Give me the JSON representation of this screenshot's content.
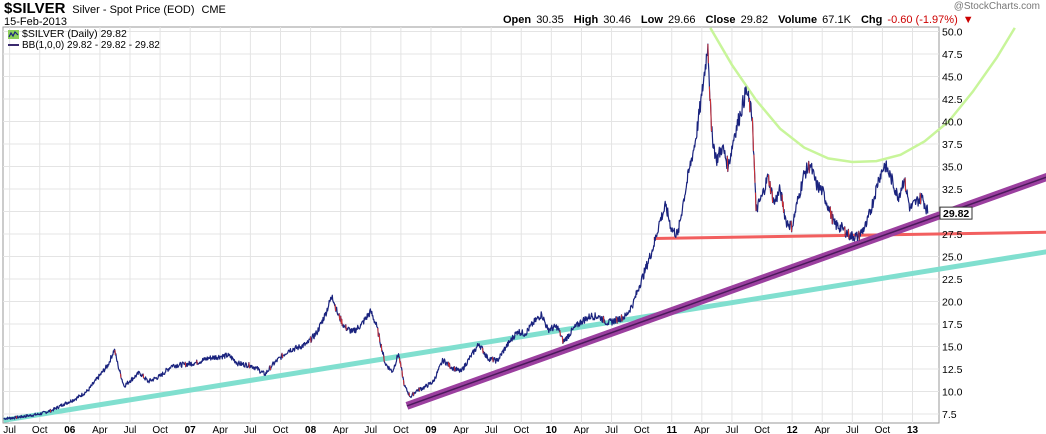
{
  "header": {
    "symbol": "$SILVER",
    "description": "Silver - Spot Price (EOD)",
    "exchange": "CME",
    "date": "15-Feb-2013",
    "open_label": "Open",
    "open": "30.35",
    "high_label": "High",
    "high": "30.46",
    "low_label": "Low",
    "low": "29.66",
    "close_label": "Close",
    "close": "29.82",
    "volume_label": "Volume",
    "volume": "67.1K",
    "chg_label": "Chg",
    "chg": "-0.60 (-1.97%)",
    "chg_arrow": "▼",
    "credit": "@StockCharts.com"
  },
  "legend": {
    "series1": "$SILVER (Daily) 29.82",
    "series2": "BB(1,0,0) 29.82 - 29.82 - 29.82"
  },
  "last_price_label": "29.82",
  "colors": {
    "price": "#1a237e",
    "teal_line": "#80dfcf",
    "purple_line": "#9b3f9f",
    "purple_core": "#4a1a5a",
    "red_line": "#f25f5f",
    "green_curve": "#c8f59a",
    "grid": "#e4e4e4",
    "accent_bg": "#8ccf5a"
  },
  "chart_data": {
    "type": "line",
    "title": "$SILVER Silver - Spot Price (EOD)",
    "xlabel": "",
    "ylabel": "",
    "ylim": [
      6.5,
      50.5
    ],
    "y_ticks": [
      7.5,
      10.0,
      12.5,
      15.0,
      17.5,
      20.0,
      22.5,
      25.0,
      27.5,
      30.0,
      32.5,
      35.0,
      37.5,
      40.0,
      42.5,
      45.0,
      47.5,
      50.0
    ],
    "x_ticks": [
      {
        "label": "Jul",
        "t": 2005.5
      },
      {
        "label": "Oct",
        "t": 2005.75
      },
      {
        "label": "06",
        "t": 2006.0
      },
      {
        "label": "Apr",
        "t": 2006.25
      },
      {
        "label": "Jul",
        "t": 2006.5
      },
      {
        "label": "Oct",
        "t": 2006.75
      },
      {
        "label": "07",
        "t": 2007.0
      },
      {
        "label": "Apr",
        "t": 2007.25
      },
      {
        "label": "Jul",
        "t": 2007.5
      },
      {
        "label": "Oct",
        "t": 2007.75
      },
      {
        "label": "08",
        "t": 2008.0
      },
      {
        "label": "Apr",
        "t": 2008.25
      },
      {
        "label": "Jul",
        "t": 2008.5
      },
      {
        "label": "Oct",
        "t": 2008.75
      },
      {
        "label": "09",
        "t": 2009.0
      },
      {
        "label": "Apr",
        "t": 2009.25
      },
      {
        "label": "Jul",
        "t": 2009.5
      },
      {
        "label": "Oct",
        "t": 2009.75
      },
      {
        "label": "10",
        "t": 2010.0
      },
      {
        "label": "Apr",
        "t": 2010.25
      },
      {
        "label": "Jul",
        "t": 2010.5
      },
      {
        "label": "Oct",
        "t": 2010.75
      },
      {
        "label": "11",
        "t": 2011.0
      },
      {
        "label": "Apr",
        "t": 2011.25
      },
      {
        "label": "Jul",
        "t": 2011.5
      },
      {
        "label": "Oct",
        "t": 2011.75
      },
      {
        "label": "12",
        "t": 2012.0
      },
      {
        "label": "Apr",
        "t": 2012.25
      },
      {
        "label": "Jul",
        "t": 2012.5
      },
      {
        "label": "Oct",
        "t": 2012.75
      },
      {
        "label": "13",
        "t": 2013.0
      }
    ],
    "series": [
      {
        "name": "$SILVER (Daily)",
        "points": [
          [
            2005.45,
            7.0
          ],
          [
            2005.55,
            7.1
          ],
          [
            2005.65,
            7.3
          ],
          [
            2005.75,
            7.5
          ],
          [
            2005.85,
            7.9
          ],
          [
            2005.95,
            8.6
          ],
          [
            2006.05,
            9.2
          ],
          [
            2006.15,
            10.1
          ],
          [
            2006.25,
            11.8
          ],
          [
            2006.32,
            13.0
          ],
          [
            2006.37,
            14.7
          ],
          [
            2006.4,
            12.9
          ],
          [
            2006.45,
            10.6
          ],
          [
            2006.5,
            11.2
          ],
          [
            2006.58,
            12.1
          ],
          [
            2006.65,
            11.1
          ],
          [
            2006.75,
            11.7
          ],
          [
            2006.85,
            12.9
          ],
          [
            2006.95,
            13.0
          ],
          [
            2007.05,
            13.2
          ],
          [
            2007.15,
            13.7
          ],
          [
            2007.25,
            13.9
          ],
          [
            2007.32,
            14.0
          ],
          [
            2007.4,
            13.1
          ],
          [
            2007.5,
            12.9
          ],
          [
            2007.55,
            12.6
          ],
          [
            2007.62,
            11.9
          ],
          [
            2007.68,
            12.9
          ],
          [
            2007.75,
            13.8
          ],
          [
            2007.82,
            14.6
          ],
          [
            2007.9,
            14.9
          ],
          [
            2007.97,
            15.3
          ],
          [
            2008.05,
            16.5
          ],
          [
            2008.12,
            18.5
          ],
          [
            2008.18,
            20.7
          ],
          [
            2008.22,
            18.8
          ],
          [
            2008.28,
            17.2
          ],
          [
            2008.35,
            16.6
          ],
          [
            2008.42,
            17.4
          ],
          [
            2008.5,
            18.9
          ],
          [
            2008.55,
            17.2
          ],
          [
            2008.62,
            13.1
          ],
          [
            2008.68,
            12.2
          ],
          [
            2008.73,
            14.2
          ],
          [
            2008.78,
            10.6
          ],
          [
            2008.83,
            9.4
          ],
          [
            2008.88,
            10.1
          ],
          [
            2008.95,
            10.5
          ],
          [
            2009.02,
            11.1
          ],
          [
            2009.1,
            13.5
          ],
          [
            2009.17,
            12.7
          ],
          [
            2009.25,
            12.2
          ],
          [
            2009.33,
            13.9
          ],
          [
            2009.4,
            15.3
          ],
          [
            2009.47,
            13.7
          ],
          [
            2009.55,
            13.4
          ],
          [
            2009.62,
            14.9
          ],
          [
            2009.72,
            16.7
          ],
          [
            2009.78,
            16.4
          ],
          [
            2009.85,
            17.6
          ],
          [
            2009.92,
            18.6
          ],
          [
            2009.97,
            16.9
          ],
          [
            2010.05,
            17.2
          ],
          [
            2010.1,
            15.5
          ],
          [
            2010.18,
            16.9
          ],
          [
            2010.25,
            17.8
          ],
          [
            2010.33,
            18.4
          ],
          [
            2010.4,
            18.3
          ],
          [
            2010.47,
            17.6
          ],
          [
            2010.55,
            18.0
          ],
          [
            2010.62,
            18.4
          ],
          [
            2010.68,
            19.8
          ],
          [
            2010.73,
            21.7
          ],
          [
            2010.78,
            23.5
          ],
          [
            2010.85,
            26.2
          ],
          [
            2010.9,
            28.9
          ],
          [
            2010.95,
            30.6
          ],
          [
            2011.0,
            28.0
          ],
          [
            2011.05,
            27.4
          ],
          [
            2011.1,
            31.4
          ],
          [
            2011.15,
            34.9
          ],
          [
            2011.2,
            38.1
          ],
          [
            2011.25,
            42.9
          ],
          [
            2011.3,
            48.6
          ],
          [
            2011.33,
            38.9
          ],
          [
            2011.37,
            35.7
          ],
          [
            2011.42,
            37.2
          ],
          [
            2011.47,
            35.0
          ],
          [
            2011.52,
            38.5
          ],
          [
            2011.57,
            40.9
          ],
          [
            2011.62,
            43.5
          ],
          [
            2011.67,
            40.4
          ],
          [
            2011.7,
            30.1
          ],
          [
            2011.75,
            31.7
          ],
          [
            2011.8,
            33.9
          ],
          [
            2011.85,
            30.9
          ],
          [
            2011.9,
            32.4
          ],
          [
            2011.95,
            28.9
          ],
          [
            2012.0,
            28.3
          ],
          [
            2012.05,
            31.4
          ],
          [
            2012.1,
            34.2
          ],
          [
            2012.15,
            35.2
          ],
          [
            2012.2,
            33.0
          ],
          [
            2012.25,
            32.3
          ],
          [
            2012.3,
            30.6
          ],
          [
            2012.35,
            28.6
          ],
          [
            2012.42,
            28.1
          ],
          [
            2012.48,
            27.3
          ],
          [
            2012.55,
            27.2
          ],
          [
            2012.62,
            28.6
          ],
          [
            2012.68,
            31.5
          ],
          [
            2012.72,
            33.7
          ],
          [
            2012.77,
            35.2
          ],
          [
            2012.82,
            33.8
          ],
          [
            2012.88,
            31.6
          ],
          [
            2012.93,
            33.6
          ],
          [
            2012.98,
            30.3
          ],
          [
            2013.03,
            31.1
          ],
          [
            2013.08,
            31.6
          ],
          [
            2013.13,
            29.82
          ]
        ]
      }
    ],
    "annotations": [
      {
        "name": "long-term support line",
        "color": "teal",
        "from": [
          2005.45,
          6.8
        ],
        "to": [
          2014.15,
          25.6
        ]
      },
      {
        "name": "rising trend channel",
        "color": "purple",
        "from": [
          2008.8,
          8.4
        ],
        "to": [
          2014.15,
          34.0
        ]
      },
      {
        "name": "horizontal support",
        "color": "red",
        "from": [
          2010.85,
          27.0
        ],
        "to": [
          2014.15,
          27.7
        ]
      },
      {
        "name": "rounded bottom arc",
        "color": "light-green",
        "points": [
          [
            2011.32,
            50.4
          ],
          [
            2011.5,
            46.3
          ],
          [
            2011.7,
            42.4
          ],
          [
            2011.9,
            39.2
          ],
          [
            2012.1,
            37.1
          ],
          [
            2012.3,
            35.9
          ],
          [
            2012.5,
            35.5
          ],
          [
            2012.7,
            35.6
          ],
          [
            2012.9,
            36.3
          ],
          [
            2013.1,
            37.8
          ],
          [
            2013.3,
            40.0
          ],
          [
            2013.5,
            43.3
          ],
          [
            2013.7,
            47.1
          ],
          [
            2013.85,
            50.4
          ]
        ]
      }
    ]
  }
}
